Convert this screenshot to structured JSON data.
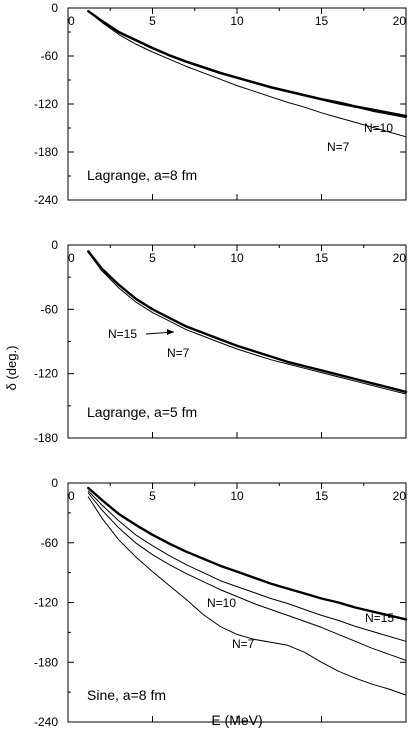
{
  "figure": {
    "ylabel": "δ (deg.)",
    "xlabel": "E (MeV)"
  },
  "chart_data": [
    {
      "type": "line",
      "xlim": [
        0,
        20
      ],
      "ylim": [
        -240,
        0
      ],
      "xticks": [
        "0",
        "5",
        "10",
        "15",
        "20"
      ],
      "yticks": [
        "0",
        "-60",
        "-120",
        "-180",
        "-240"
      ],
      "annotation": "Lagrange, a=8 fm",
      "curve_labels": [
        "N=10",
        "N=7"
      ],
      "series": [
        {
          "name": "",
          "stroke": 2.4,
          "x": [
            1.2,
            2,
            3,
            4,
            5,
            6,
            7,
            8,
            9,
            10,
            11,
            12,
            13,
            14,
            15,
            16,
            17,
            18,
            19,
            20
          ],
          "y": [
            -4,
            -16,
            -30,
            -40,
            -50,
            -59,
            -67,
            -74,
            -81,
            -87,
            -93,
            -99,
            -104,
            -109,
            -114,
            -118,
            -123,
            -127,
            -131,
            -135
          ]
        },
        {
          "name": "N=10",
          "stroke": 1.0,
          "x": [
            1.2,
            2,
            3,
            4,
            5,
            6,
            7,
            8,
            9,
            10,
            11,
            12,
            13,
            14,
            15,
            16,
            17,
            18,
            19,
            20
          ],
          "y": [
            -4,
            -17,
            -31,
            -41,
            -51,
            -60,
            -68,
            -75,
            -82,
            -88,
            -94,
            -100,
            -105,
            -110,
            -115,
            -120,
            -124,
            -129,
            -133,
            -137
          ]
        },
        {
          "name": "N=7",
          "stroke": 1.0,
          "x": [
            1.2,
            2,
            3,
            4,
            5,
            6,
            7,
            8,
            9,
            10,
            11,
            12,
            13,
            14,
            15,
            16,
            17,
            18,
            19,
            20
          ],
          "y": [
            -4,
            -18,
            -33,
            -45,
            -55,
            -64,
            -73,
            -81,
            -89,
            -97,
            -104,
            -111,
            -118,
            -124,
            -131,
            -137,
            -143,
            -149,
            -155,
            -161
          ]
        }
      ]
    },
    {
      "type": "line",
      "xlim": [
        0,
        20
      ],
      "ylim": [
        -180,
        0
      ],
      "xticks": [
        "0",
        "5",
        "10",
        "15",
        "20"
      ],
      "yticks": [
        "0",
        "-60",
        "-120",
        "-180"
      ],
      "annotation": "Lagrange, a=5 fm",
      "curve_labels": [
        "N=15",
        "N=7"
      ],
      "series": [
        {
          "name": "N=15",
          "stroke": 2.4,
          "x": [
            1.2,
            2,
            3,
            4,
            5,
            6,
            7,
            8,
            9,
            10,
            11,
            12,
            13,
            14,
            15,
            16,
            17,
            18,
            19,
            20
          ],
          "y": [
            -6,
            -22,
            -37,
            -50,
            -60,
            -68,
            -76,
            -82,
            -88,
            -94,
            -99,
            -104,
            -109,
            -113,
            -117,
            -121,
            -125,
            -129,
            -133,
            -137
          ]
        },
        {
          "name": "N=7",
          "stroke": 1.0,
          "x": [
            1.2,
            2,
            3,
            4,
            5,
            6,
            7,
            8,
            9,
            10,
            11,
            12,
            13,
            14,
            15,
            16,
            17,
            18,
            19,
            20
          ],
          "y": [
            -7,
            -24,
            -40,
            -53,
            -63,
            -71,
            -79,
            -85,
            -91,
            -97,
            -102,
            -107,
            -111,
            -115,
            -119,
            -123,
            -127,
            -131,
            -135,
            -139
          ]
        }
      ]
    },
    {
      "type": "line",
      "xlim": [
        0,
        20
      ],
      "ylim": [
        -240,
        0
      ],
      "xticks": [
        "0",
        "5",
        "10",
        "15",
        "20"
      ],
      "yticks": [
        "0",
        "-60",
        "-120",
        "-180",
        "-240"
      ],
      "annotation": "Sine, a=8 fm",
      "curve_labels": [
        "N=10",
        "N=15",
        "N=7"
      ],
      "series": [
        {
          "name": "",
          "stroke": 2.4,
          "x": [
            1.2,
            2,
            3,
            4,
            5,
            6,
            7,
            8,
            9,
            10,
            11,
            12,
            13,
            14,
            15,
            16,
            17,
            18,
            19,
            20
          ],
          "y": [
            -5,
            -17,
            -31,
            -42,
            -52,
            -61,
            -69,
            -76,
            -83,
            -89,
            -95,
            -101,
            -106,
            -111,
            -116,
            -120,
            -125,
            -129,
            -133,
            -137
          ]
        },
        {
          "name": "N=15",
          "stroke": 1.0,
          "x": [
            1.2,
            2,
            3,
            4,
            5,
            6,
            7,
            8,
            9,
            10,
            11,
            12,
            13,
            14,
            15,
            16,
            17,
            18,
            19,
            20
          ],
          "y": [
            -8,
            -22,
            -38,
            -52,
            -63,
            -73,
            -82,
            -90,
            -98,
            -104,
            -110,
            -116,
            -121,
            -127,
            -133,
            -138,
            -144,
            -149,
            -154,
            -159
          ]
        },
        {
          "name": "N=10",
          "stroke": 1.0,
          "x": [
            1.2,
            2,
            3,
            4,
            5,
            6,
            7,
            8,
            9,
            10,
            11,
            12,
            13,
            14,
            15,
            16,
            17,
            18,
            19,
            20
          ],
          "y": [
            -10,
            -27,
            -45,
            -60,
            -72,
            -82,
            -91,
            -99,
            -107,
            -114,
            -121,
            -127,
            -133,
            -139,
            -145,
            -152,
            -159,
            -166,
            -172,
            -178
          ]
        },
        {
          "name": "N=7",
          "stroke": 1.0,
          "x": [
            1.2,
            2,
            3,
            4,
            5,
            6,
            7,
            8,
            9,
            10,
            11,
            12,
            13,
            14,
            15,
            16,
            17,
            18,
            19,
            20
          ],
          "y": [
            -14,
            -35,
            -57,
            -74,
            -89,
            -103,
            -117,
            -132,
            -144,
            -152,
            -157,
            -160,
            -163,
            -170,
            -180,
            -189,
            -196,
            -202,
            -207,
            -213
          ]
        }
      ]
    }
  ]
}
